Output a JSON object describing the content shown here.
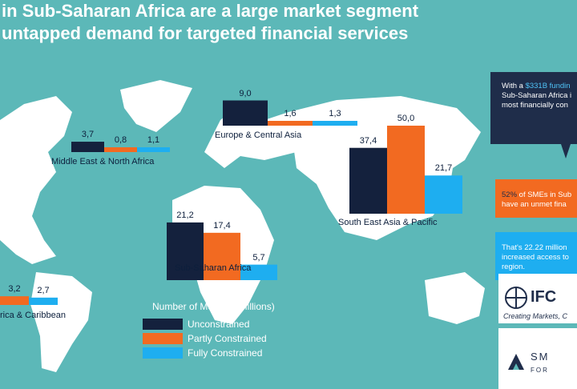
{
  "title": {
    "line1": "in Sub-Saharan Africa are a large market segment",
    "line2": "untapped demand for targeted financial services"
  },
  "colors": {
    "background": "#5cb8b8",
    "land": "#ffffff",
    "unconstrained": "#14213d",
    "partly_constrained": "#f26a21",
    "fully_constrained": "#1eaef0",
    "panel": "#1f2d4a"
  },
  "legend": {
    "title": "Number of MSMEs (Millions)",
    "items": [
      "Unconstrained",
      "Partly Constrained",
      "Fully Constrained"
    ]
  },
  "chart_data": {
    "type": "bar",
    "title": "",
    "unit": "Number of MSMEs (Millions)",
    "series_names": [
      "Unconstrained",
      "Partly Constrained",
      "Fully Constrained"
    ],
    "regions": [
      {
        "name": "Europe & Central Asia",
        "values": [
          9.0,
          1.6,
          1.3
        ],
        "labels": [
          "9,0",
          "1,6",
          "1,3"
        ]
      },
      {
        "name": "Middle East & North Africa",
        "values": [
          3.7,
          0.8,
          1.1
        ],
        "labels": [
          "3,7",
          "0,8",
          "1,1"
        ]
      },
      {
        "name": "South East Asia & Pacific",
        "values": [
          37.4,
          50.0,
          21.7
        ],
        "labels": [
          "37,4",
          "50,0",
          "21,7"
        ]
      },
      {
        "name": "Sub-Saharan Africa",
        "values": [
          21.2,
          17.4,
          5.7
        ],
        "labels": [
          "21,2",
          "17,4",
          "5,7"
        ]
      },
      {
        "name": "rica & Caribbean",
        "values": [
          null,
          3.2,
          2.7
        ],
        "labels": [
          "",
          "3,2",
          "2,7"
        ]
      }
    ]
  },
  "callouts": [
    {
      "text_a": "With a ",
      "highlight": "$331B fundin",
      "text_b": " Sub-Saharan Africa i most financially con"
    },
    {
      "text_a": "",
      "highlight": "52%",
      "text_b": " of SMEs in Sub have an unmet fina"
    },
    {
      "text_a": "That's 22.22 million increased access to region.",
      "highlight": "",
      "text_b": ""
    }
  ],
  "logos": {
    "ifc": "IFC",
    "ifc_tagline": "Creating Markets, C",
    "sme": "SM",
    "sme_sub": "FOR"
  }
}
